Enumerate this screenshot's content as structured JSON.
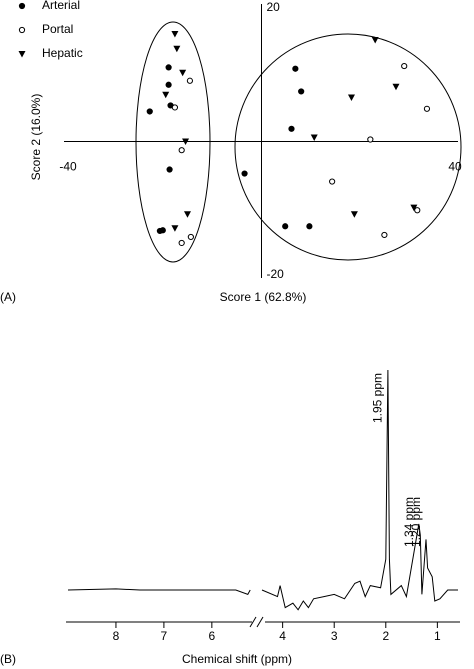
{
  "chart_data": [
    {
      "type": "scatter",
      "panel": "(A)",
      "x_label": "Score 1 (62.8%)",
      "y_label": "Score 2 (16.0%)",
      "xlim": [
        -40,
        40
      ],
      "ylim": [
        -20,
        20
      ],
      "xticks": [
        -40,
        40
      ],
      "yticks": [
        -20,
        20
      ],
      "legend": "upper-left",
      "series": [
        {
          "name": "Arterial",
          "color": "#000000",
          "marker": "filled-circle",
          "x": [
            -19.2,
            -19.2,
            -23.1,
            -18.8,
            -19.0,
            -20.4,
            -21.0,
            7.0,
            8.2,
            6.2,
            -3.5,
            4.9,
            9.9
          ],
          "values": [
            11.1,
            8.5,
            4.5,
            5.4,
            -4.2,
            -13.3,
            -13.4,
            10.9,
            7.5,
            1.9,
            -4.8,
            -12.7,
            -12.7
          ]
        },
        {
          "name": "Portal",
          "color": "#000000",
          "marker": "open-circle",
          "x": [
            -14.8,
            -17.9,
            -16.5,
            -16.5,
            -14.6,
            29.5,
            34.2,
            22.5,
            14.6,
            32.2,
            25.4
          ],
          "values": [
            9.1,
            5.1,
            -1.3,
            -15.2,
            -14.3,
            11.3,
            4.9,
            0.3,
            -6.0,
            -10.3,
            -14.0
          ]
        },
        {
          "name": "Hepatic",
          "color": "#000000",
          "marker": "triangle-down",
          "x": [
            -17.9,
            -17.5,
            -16.3,
            -19.8,
            -15.7,
            -15.3,
            -17.9,
            23.5,
            27.8,
            18.6,
            10.9,
            19.2,
            31.5
          ],
          "values": [
            16.1,
            13.9,
            10.3,
            7.0,
            0.0,
            -10.9,
            -13.0,
            15.2,
            8.2,
            6.6,
            0.6,
            -10.9,
            -9.9
          ]
        }
      ]
    },
    {
      "type": "line",
      "panel": "(B)",
      "x_label": "Chemical shift (ppm)",
      "color": "#000000",
      "xlim": [
        9.0,
        0.6
      ],
      "xbreak": [
        5.1,
        4.4
      ],
      "ylim": [
        -10,
        100
      ],
      "xticks": [
        8,
        7,
        6,
        4,
        3,
        2,
        1
      ],
      "x": [
        9.0,
        8.0,
        7.5,
        6.5,
        5.5,
        5.25,
        5.2,
        null,
        4.4,
        4.1,
        4.05,
        3.95,
        3.8,
        3.7,
        3.6,
        3.5,
        3.4,
        3.2,
        3.0,
        2.8,
        2.6,
        2.5,
        2.4,
        2.3,
        2.1,
        2.0,
        1.96,
        1.93,
        1.9,
        1.7,
        1.6,
        1.36,
        1.33,
        1.3,
        1.22,
        1.19,
        1.1,
        1.05,
        0.95,
        0.8,
        0.6
      ],
      "values": [
        0,
        0.5,
        0,
        0,
        0,
        -2,
        0,
        null,
        0,
        -3,
        2,
        -8,
        -6,
        -9,
        -5,
        -8,
        -4,
        -3,
        -2,
        -4,
        3,
        4,
        -3,
        2,
        1,
        14,
        100,
        14,
        -2,
        2,
        -3,
        30,
        25,
        -2,
        23,
        10,
        6,
        -5,
        -4,
        0,
        0
      ],
      "annotations": [
        {
          "text": "1.95 ppm",
          "x": 1.95
        },
        {
          "text": "1.34 ppm",
          "x": 1.34
        },
        {
          "text": "1.20 ppm",
          "x": 1.2
        }
      ]
    }
  ]
}
